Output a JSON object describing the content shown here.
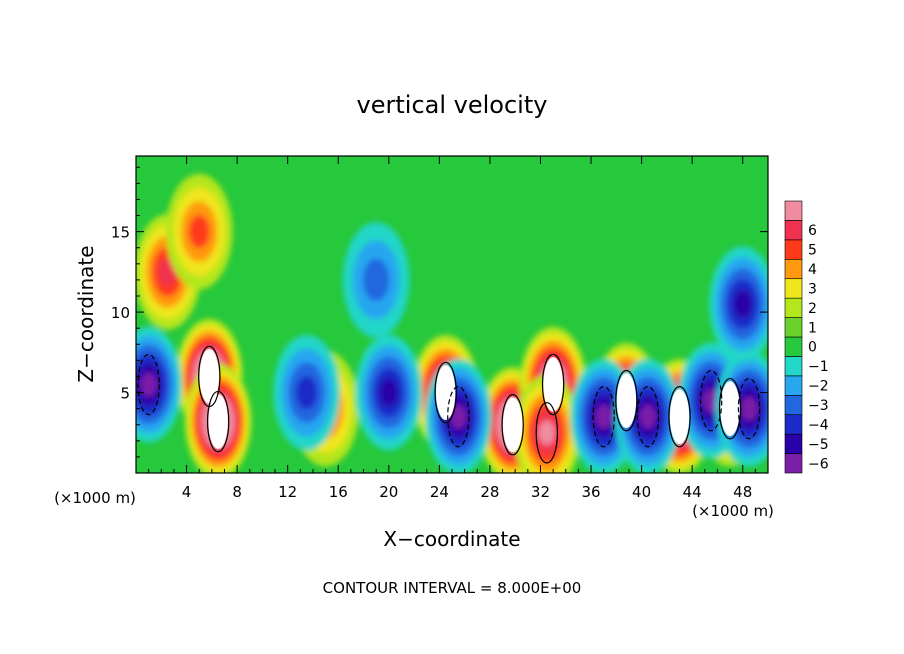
{
  "chart_data": {
    "type": "heatmap",
    "title": "vertical velocity",
    "xlabel": "X−coordinate",
    "ylabel": "Z−coordinate",
    "x_unit": "(×1000 m)",
    "y_unit": "(×1000 m)",
    "footer": "CONTOUR INTERVAL = 8.000E+00",
    "xlim": [
      0,
      50
    ],
    "ylim": [
      0,
      19.7
    ],
    "x_ticks": [
      4,
      8,
      12,
      16,
      20,
      24,
      28,
      32,
      36,
      40,
      44,
      48
    ],
    "y_ticks": [
      5,
      10,
      15
    ],
    "colorbar": {
      "levels": [
        -6,
        -5,
        -4,
        -3,
        -2,
        -1,
        0,
        1,
        2,
        3,
        4,
        5,
        6
      ],
      "labels": [
        "−6",
        "−5",
        "−4",
        "−3",
        "−2",
        "−1",
        "0",
        "1",
        "2",
        "3",
        "4",
        "5",
        "6"
      ],
      "colors": [
        "#7a1fa8",
        "#2a00a8",
        "#1c2cc8",
        "#2266e0",
        "#28a6f0",
        "#22d6c8",
        "#26c83c",
        "#6ad22a",
        "#b4e61e",
        "#f0e61e",
        "#ff9a10",
        "#ff3a1a",
        "#f03250",
        "#f08ca0"
      ]
    },
    "features": [
      {
        "kind": "updraft",
        "x": 5.8,
        "z": 6.0,
        "peak": 9
      },
      {
        "kind": "updraft",
        "x": 6.5,
        "z": 3.2,
        "peak": 9
      },
      {
        "kind": "updraft",
        "x": 2.5,
        "z": 12.5,
        "peak": 4.5
      },
      {
        "kind": "updraft",
        "x": 5.0,
        "z": 15.0,
        "peak": 3.5
      },
      {
        "kind": "updraft",
        "x": 15.0,
        "z": 4.0,
        "peak": 4
      },
      {
        "kind": "updraft",
        "x": 24.5,
        "z": 5.0,
        "peak": 8
      },
      {
        "kind": "updraft",
        "x": 29.8,
        "z": 3.0,
        "peak": 9
      },
      {
        "kind": "updraft",
        "x": 33.0,
        "z": 5.5,
        "peak": 8
      },
      {
        "kind": "updraft",
        "x": 32.5,
        "z": 2.5,
        "peak": 6
      },
      {
        "kind": "updraft",
        "x": 38.8,
        "z": 4.5,
        "peak": 8
      },
      {
        "kind": "updraft",
        "x": 43.0,
        "z": 3.5,
        "peak": 9
      },
      {
        "kind": "updraft",
        "x": 47.0,
        "z": 4.0,
        "peak": 7
      },
      {
        "kind": "downdraft",
        "x": 1.0,
        "z": 5.5,
        "peak": -6
      },
      {
        "kind": "downdraft",
        "x": 13.5,
        "z": 5.0,
        "peak": -4
      },
      {
        "kind": "downdraft",
        "x": 20.0,
        "z": 5.0,
        "peak": -5
      },
      {
        "kind": "downdraft",
        "x": 25.5,
        "z": 3.5,
        "peak": -6
      },
      {
        "kind": "downdraft",
        "x": 37.0,
        "z": 3.5,
        "peak": -6
      },
      {
        "kind": "downdraft",
        "x": 40.5,
        "z": 3.5,
        "peak": -6
      },
      {
        "kind": "downdraft",
        "x": 45.5,
        "z": 4.5,
        "peak": -6
      },
      {
        "kind": "downdraft",
        "x": 48.5,
        "z": 4.0,
        "peak": -6
      },
      {
        "kind": "downdraft",
        "x": 48.0,
        "z": 10.5,
        "peak": -5
      },
      {
        "kind": "downdraft",
        "x": 19.0,
        "z": 12.0,
        "peak": -3
      }
    ]
  }
}
